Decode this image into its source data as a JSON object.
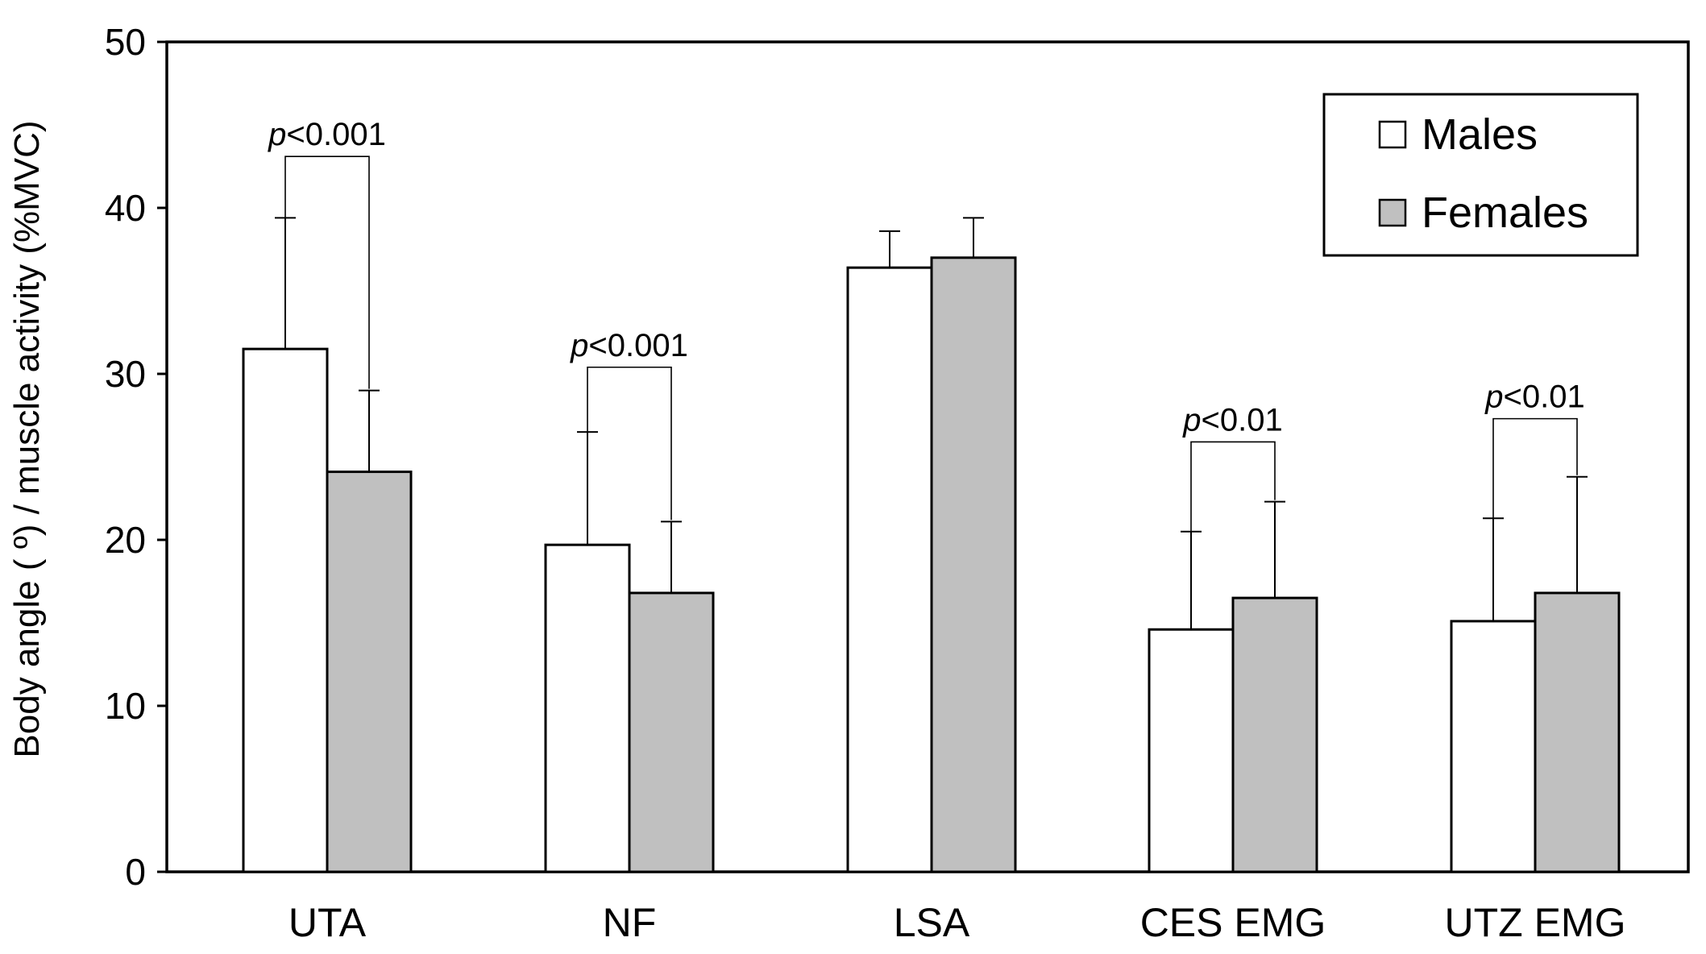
{
  "chart_data": {
    "type": "bar",
    "title": "",
    "xlabel": "",
    "ylabel": "Body angle ( º) / muscle activity (%MVC)",
    "ylim": [
      0,
      50
    ],
    "yticks": [
      0,
      10,
      20,
      30,
      40,
      50
    ],
    "ytick_labels": [
      "0",
      "10",
      "20",
      "30",
      "40",
      "50"
    ],
    "categories": [
      "UTA",
      "NF",
      "LSA",
      "CES EMG",
      "UTZ EMG"
    ],
    "series": [
      {
        "name": "Males",
        "color": "#ffffff",
        "values": [
          31.5,
          19.7,
          36.4,
          14.6,
          15.1
        ],
        "error": [
          7.9,
          6.8,
          2.2,
          5.9,
          6.2
        ]
      },
      {
        "name": "Females",
        "color": "#c0c0c0",
        "values": [
          24.1,
          16.8,
          37.0,
          16.5,
          16.8
        ],
        "error": [
          4.9,
          4.3,
          2.4,
          5.8,
          7.0
        ]
      }
    ],
    "significance": [
      {
        "category": "UTA",
        "p_prefix": "p",
        "text": "<0.001",
        "bracket_top": 43.1
      },
      {
        "category": "NF",
        "p_prefix": "p",
        "text": "<0.001",
        "bracket_top": 30.4
      },
      {
        "category": "CES EMG",
        "p_prefix": "p",
        "text": "<0.01",
        "bracket_top": 25.9
      },
      {
        "category": "UTZ EMG",
        "p_prefix": "p",
        "text": "<0.01",
        "bracket_top": 27.3
      }
    ],
    "legend_position": "top-right",
    "grid": false
  }
}
